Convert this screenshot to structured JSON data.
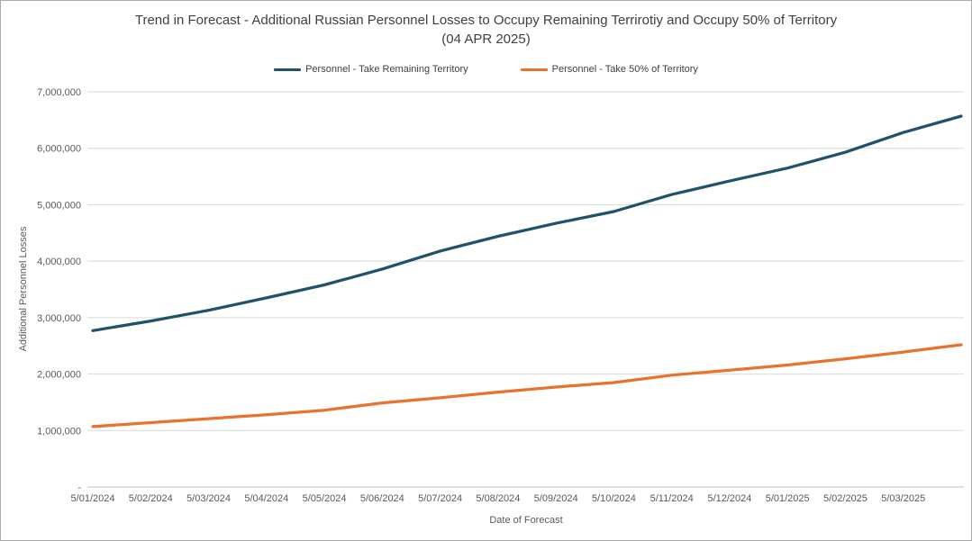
{
  "window": {
    "background": "#ffffff",
    "border_color": "#a9a9a9"
  },
  "chart_data": {
    "type": "line",
    "title": "Trend in Forecast - Additional Russian Personnel Losses to Occupy Remaining Terrirotiy and Occupy 50% of Territory",
    "subtitle": "(04 APR 2025)",
    "xlabel": "Date of Forecast",
    "ylabel": "Additional Personnel Losses",
    "ylim": [
      0,
      7000000
    ],
    "y_tick_interval": 1000000,
    "y_tick_labels": [
      "-",
      "1,000,000",
      "2,000,000",
      "3,000,000",
      "4,000,000",
      "5,000,000",
      "6,000,000",
      "7,000,000"
    ],
    "grid": true,
    "legend_position": "top",
    "categories": [
      "5/01/2024",
      "5/02/2024",
      "5/03/2024",
      "5/04/2024",
      "5/05/2024",
      "5/06/2024",
      "5/07/2024",
      "5/08/2024",
      "5/09/2024",
      "5/10/2024",
      "5/11/2024",
      "5/12/2024",
      "5/01/2025",
      "5/02/2025",
      "5/03/2025",
      ""
    ],
    "series": [
      {
        "name": "Personnel - Take Remaining Territory",
        "color": "#20526C",
        "values": [
          2770000,
          2940000,
          3130000,
          3350000,
          3580000,
          3860000,
          4180000,
          4440000,
          4670000,
          4880000,
          5180000,
          5420000,
          5650000,
          5930000,
          6280000,
          6570000
        ]
      },
      {
        "name": "Personnel - Take 50% of Territory",
        "color": "#E8732C",
        "values": [
          1070000,
          1140000,
          1210000,
          1280000,
          1360000,
          1490000,
          1580000,
          1680000,
          1770000,
          1850000,
          1980000,
          2070000,
          2160000,
          2270000,
          2390000,
          2520000
        ]
      }
    ],
    "colors": {
      "gridline": "#D9D9D9",
      "axis_line": "#BFBFBF",
      "tick_text": "#595959",
      "title_text": "#404040"
    }
  }
}
